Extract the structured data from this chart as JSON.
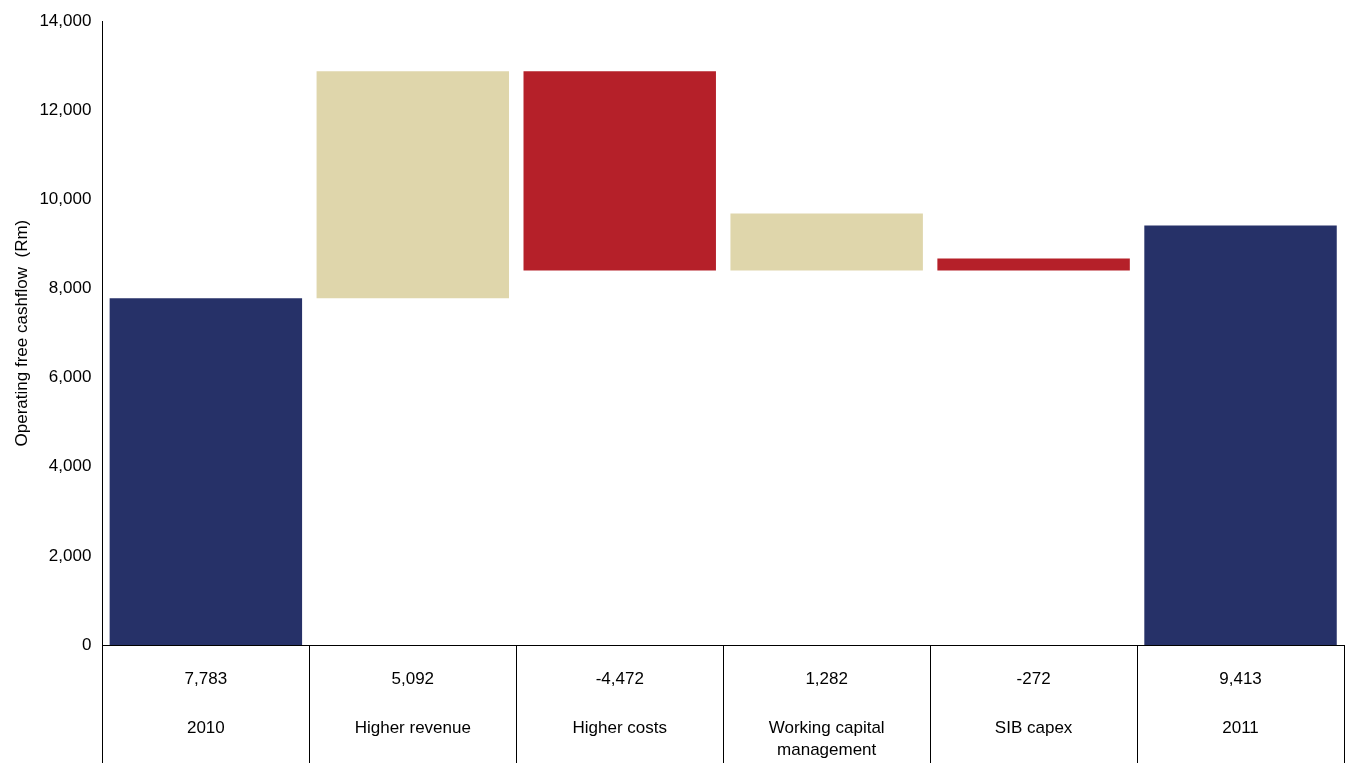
{
  "chart_data": {
    "type": "bar",
    "ylabel": "Operating free cashflow  (Rm)",
    "categories": [
      "2010",
      "Higher revenue",
      "Higher costs",
      "Working capital management",
      "SIB capex",
      "2011"
    ],
    "values": [
      7783,
      5092,
      -4472,
      1282,
      -272,
      9413
    ],
    "base": [
      0,
      7783,
      12875,
      8403,
      8675,
      0
    ],
    "colors": [
      "#263168",
      "#dfd6ab",
      "#b52029",
      "#dfd6ab",
      "#b52029",
      "#263168"
    ],
    "value_labels": [
      "7,783",
      "5,092",
      "-4,472",
      "1,282",
      "-272",
      "9,413"
    ],
    "ylim": [
      0,
      14000
    ],
    "yticks": [
      0,
      {
        "value": 2000,
        "label": "2,000"
      },
      {
        "value": 4000,
        "label": "4,000"
      },
      {
        "value": 6000,
        "label": "6,000"
      },
      {
        "value": 8000,
        "label": "8,000"
      },
      {
        "value": 10000,
        "label": "10,000"
      },
      {
        "value": 12000,
        "label": "12,000"
      },
      {
        "value": 14000,
        "label": "14,000"
      }
    ]
  }
}
